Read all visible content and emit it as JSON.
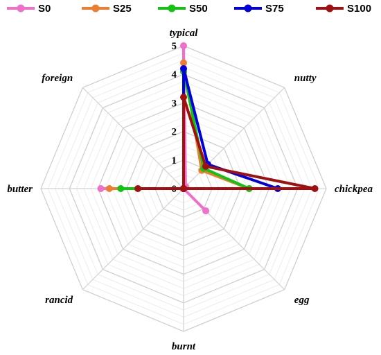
{
  "chart_data": {
    "type": "radar",
    "axes": [
      "typical",
      "nutty",
      "chickpea",
      "egg",
      "burnt",
      "rancid",
      "butter",
      "foreign"
    ],
    "rlim": [
      0,
      5
    ],
    "ticks": [
      "0",
      "1",
      "2",
      "3",
      "4",
      "5"
    ],
    "grid": true,
    "legend_position": "top",
    "series": [
      {
        "name": "S0",
        "color": "#f06fc8",
        "values": [
          5.0,
          0.1,
          0.0,
          1.1,
          0.0,
          0.0,
          2.9,
          0.0
        ]
      },
      {
        "name": "S25",
        "color": "#ed7d31",
        "values": [
          4.4,
          0.9,
          2.3,
          0.0,
          0.0,
          0.0,
          2.6,
          0.0
        ]
      },
      {
        "name": "S50",
        "color": "#13c213",
        "values": [
          4.1,
          1.0,
          2.3,
          0.0,
          0.0,
          0.0,
          2.2,
          0.0
        ]
      },
      {
        "name": "S75",
        "color": "#0000dd",
        "values": [
          4.2,
          1.2,
          3.3,
          0.0,
          0.0,
          0.0,
          0.0,
          0.0
        ]
      },
      {
        "name": "S100",
        "color": "#a01010",
        "values": [
          3.2,
          1.1,
          4.6,
          0.0,
          0.0,
          0.0,
          1.6,
          0.0
        ]
      }
    ]
  }
}
